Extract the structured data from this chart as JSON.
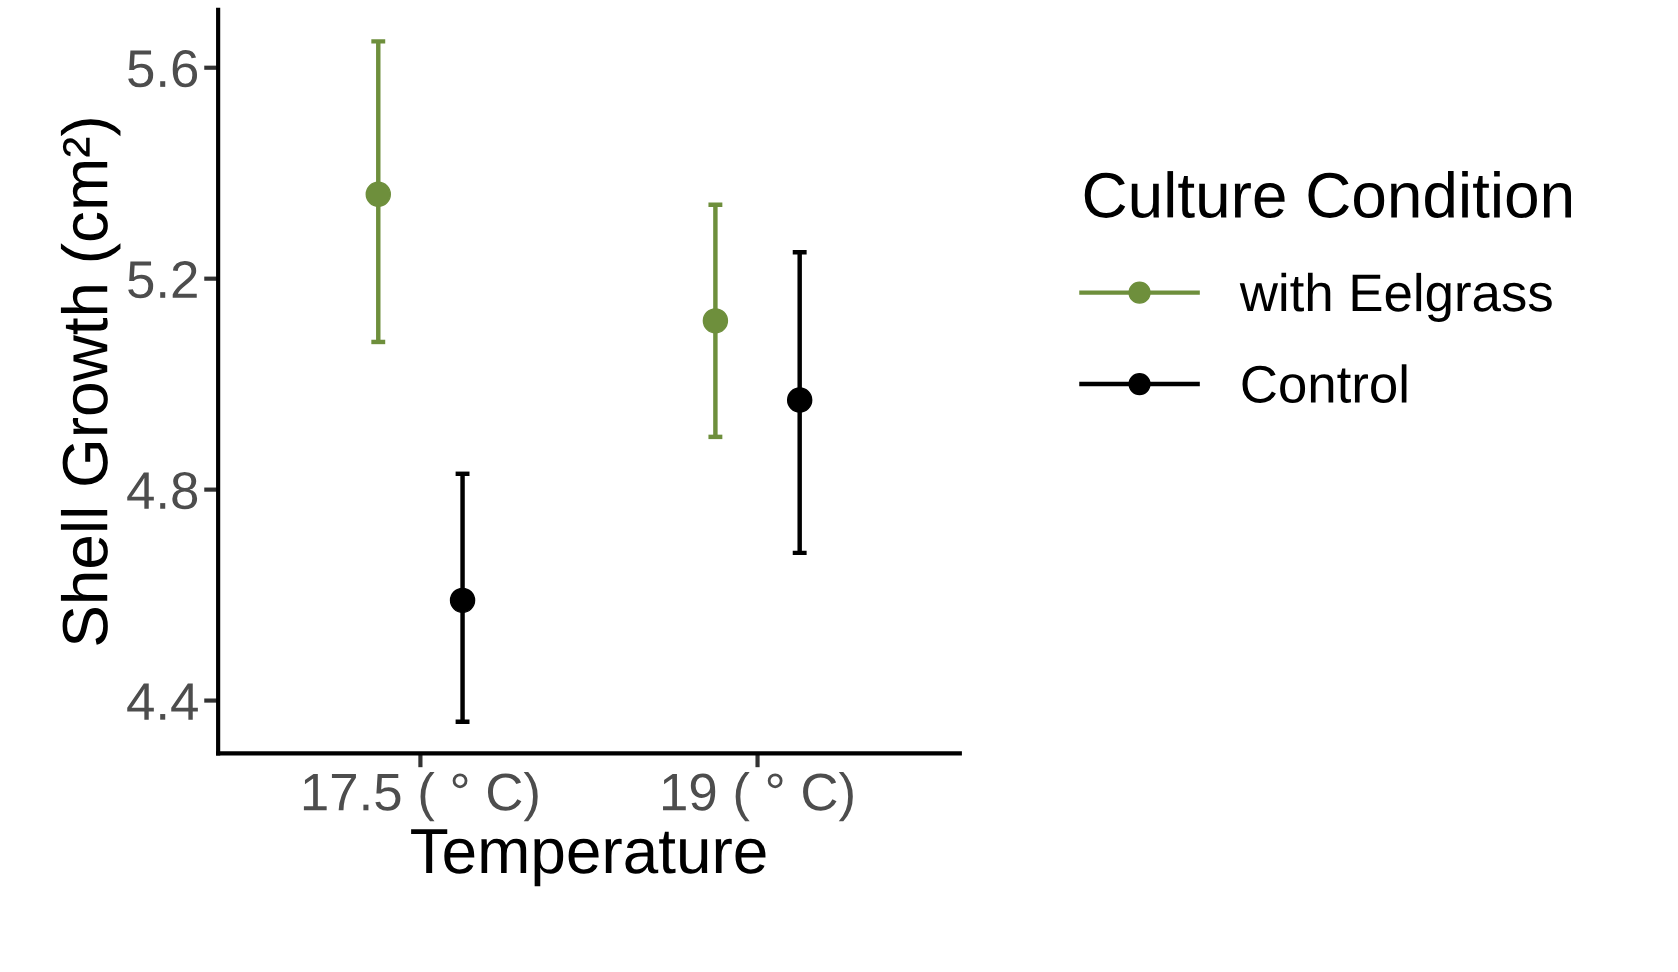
{
  "chart_data": {
    "type": "scatter",
    "xlabel": "Temperature",
    "ylabel": "Shell Growth (cm²)",
    "legend_title": "Culture Condition",
    "categories": [
      "17.5 ( ° C)",
      "19 ( ° C)"
    ],
    "series": [
      {
        "name": "with Eelgrass",
        "color": "#6e8f3c",
        "values": [
          5.36,
          5.12
        ],
        "errors": [
          [
            5.08,
            5.65
          ],
          [
            4.9,
            5.34
          ]
        ]
      },
      {
        "name": "Control",
        "color": "#000000",
        "values": [
          4.59,
          4.97
        ],
        "errors": [
          [
            4.36,
            4.83
          ],
          [
            4.68,
            5.25
          ]
        ]
      }
    ],
    "ylim": [
      4.3,
      5.71
    ],
    "yticks": [
      4.4,
      4.8,
      5.2,
      5.6
    ],
    "grid": false,
    "legend": "right",
    "marker": "circle"
  }
}
